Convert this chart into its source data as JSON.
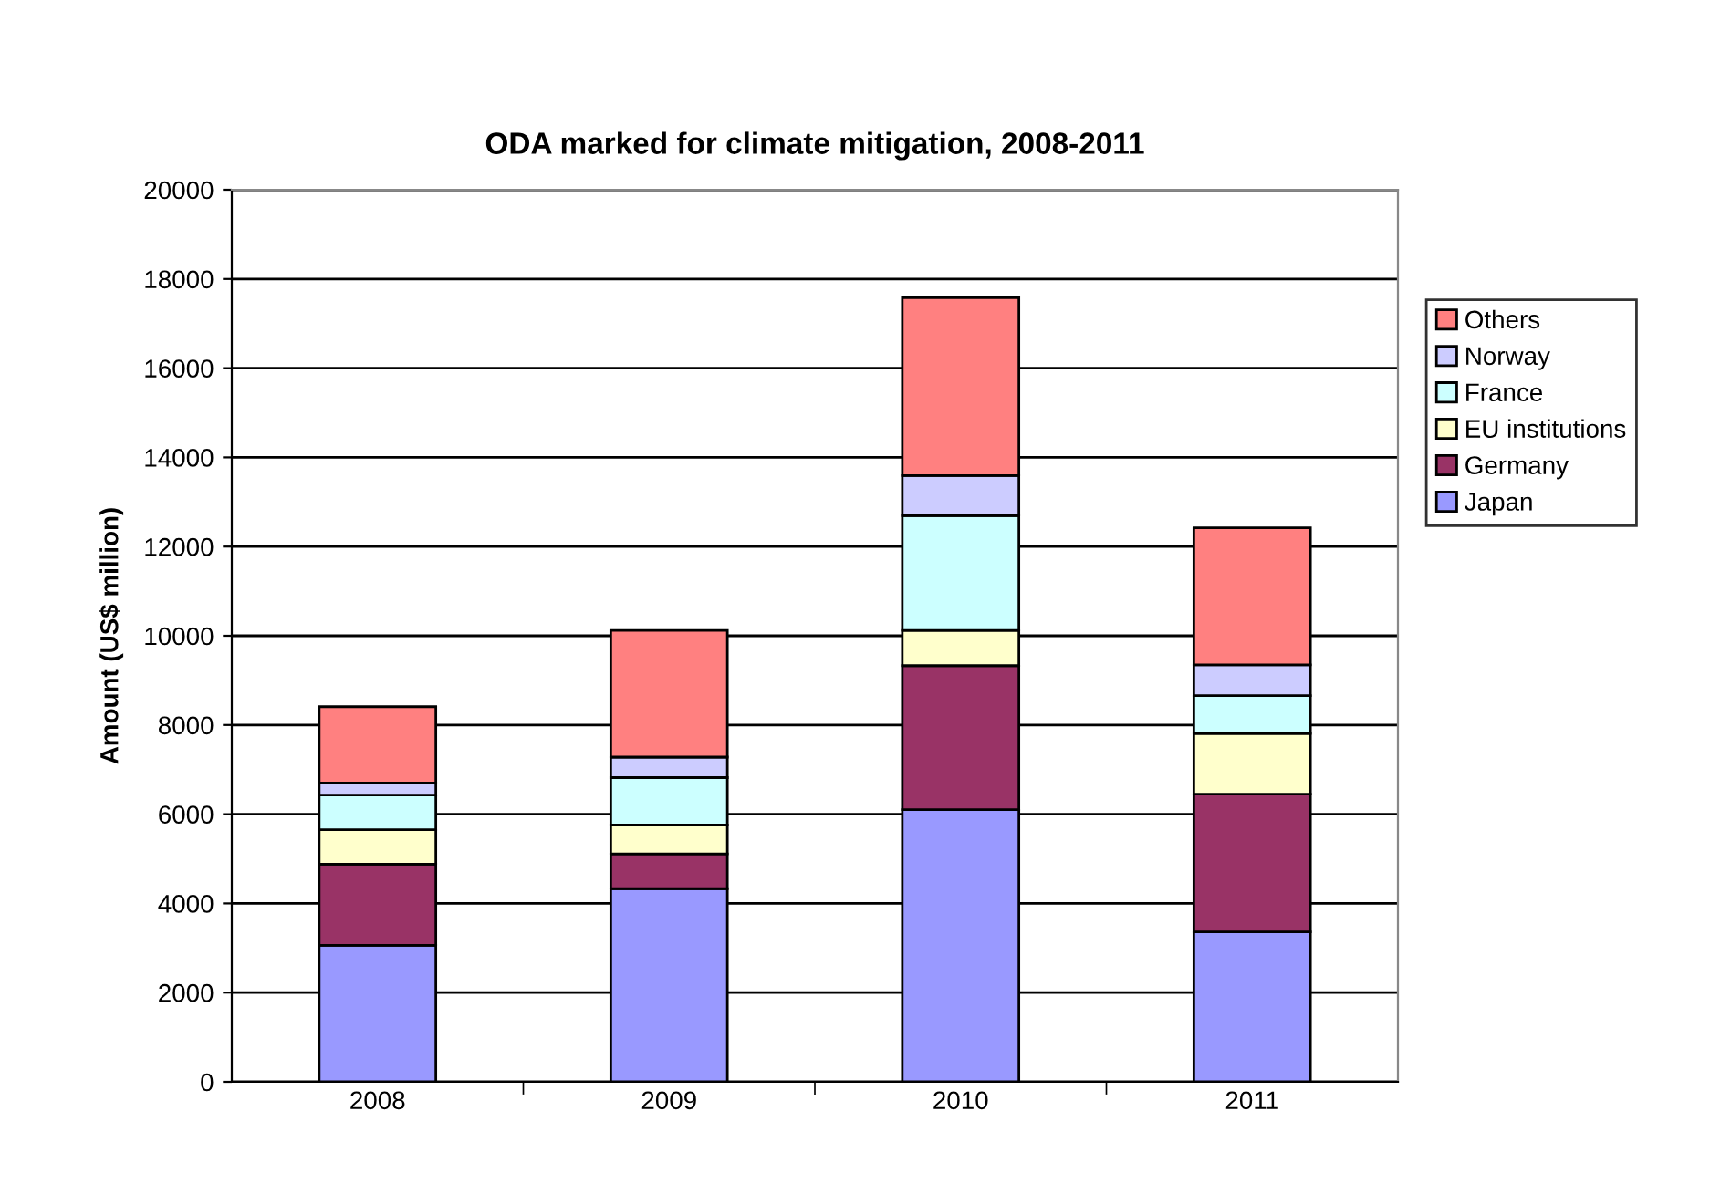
{
  "chart_data": {
    "type": "bar",
    "title": "ODA marked for climate mitigation, 2008-2011",
    "ylabel": "Amount (US$ million)",
    "categories": [
      "2008",
      "2009",
      "2010",
      "2011"
    ],
    "stacked": true,
    "series": [
      {
        "name": "Japan",
        "color": "#9999ff",
        "values": [
          3060,
          4330,
          6100,
          3360
        ]
      },
      {
        "name": "Germany",
        "color": "#993366",
        "values": [
          1820,
          780,
          3230,
          3090
        ]
      },
      {
        "name": "EU institutions",
        "color": "#ffffcc",
        "values": [
          770,
          650,
          790,
          1360
        ]
      },
      {
        "name": "France",
        "color": "#ccffff",
        "values": [
          780,
          1060,
          2570,
          850
        ]
      },
      {
        "name": "Norway",
        "color": "#ccccff",
        "values": [
          270,
          460,
          900,
          690
        ]
      },
      {
        "name": "Others",
        "color": "#ff8080",
        "values": [
          1710,
          2840,
          3990,
          3070
        ]
      }
    ],
    "ylim": [
      0,
      20000
    ],
    "yticks": [
      0,
      2000,
      4000,
      6000,
      8000,
      10000,
      12000,
      14000,
      16000,
      18000,
      20000
    ],
    "grid": "y",
    "legend": "right"
  }
}
